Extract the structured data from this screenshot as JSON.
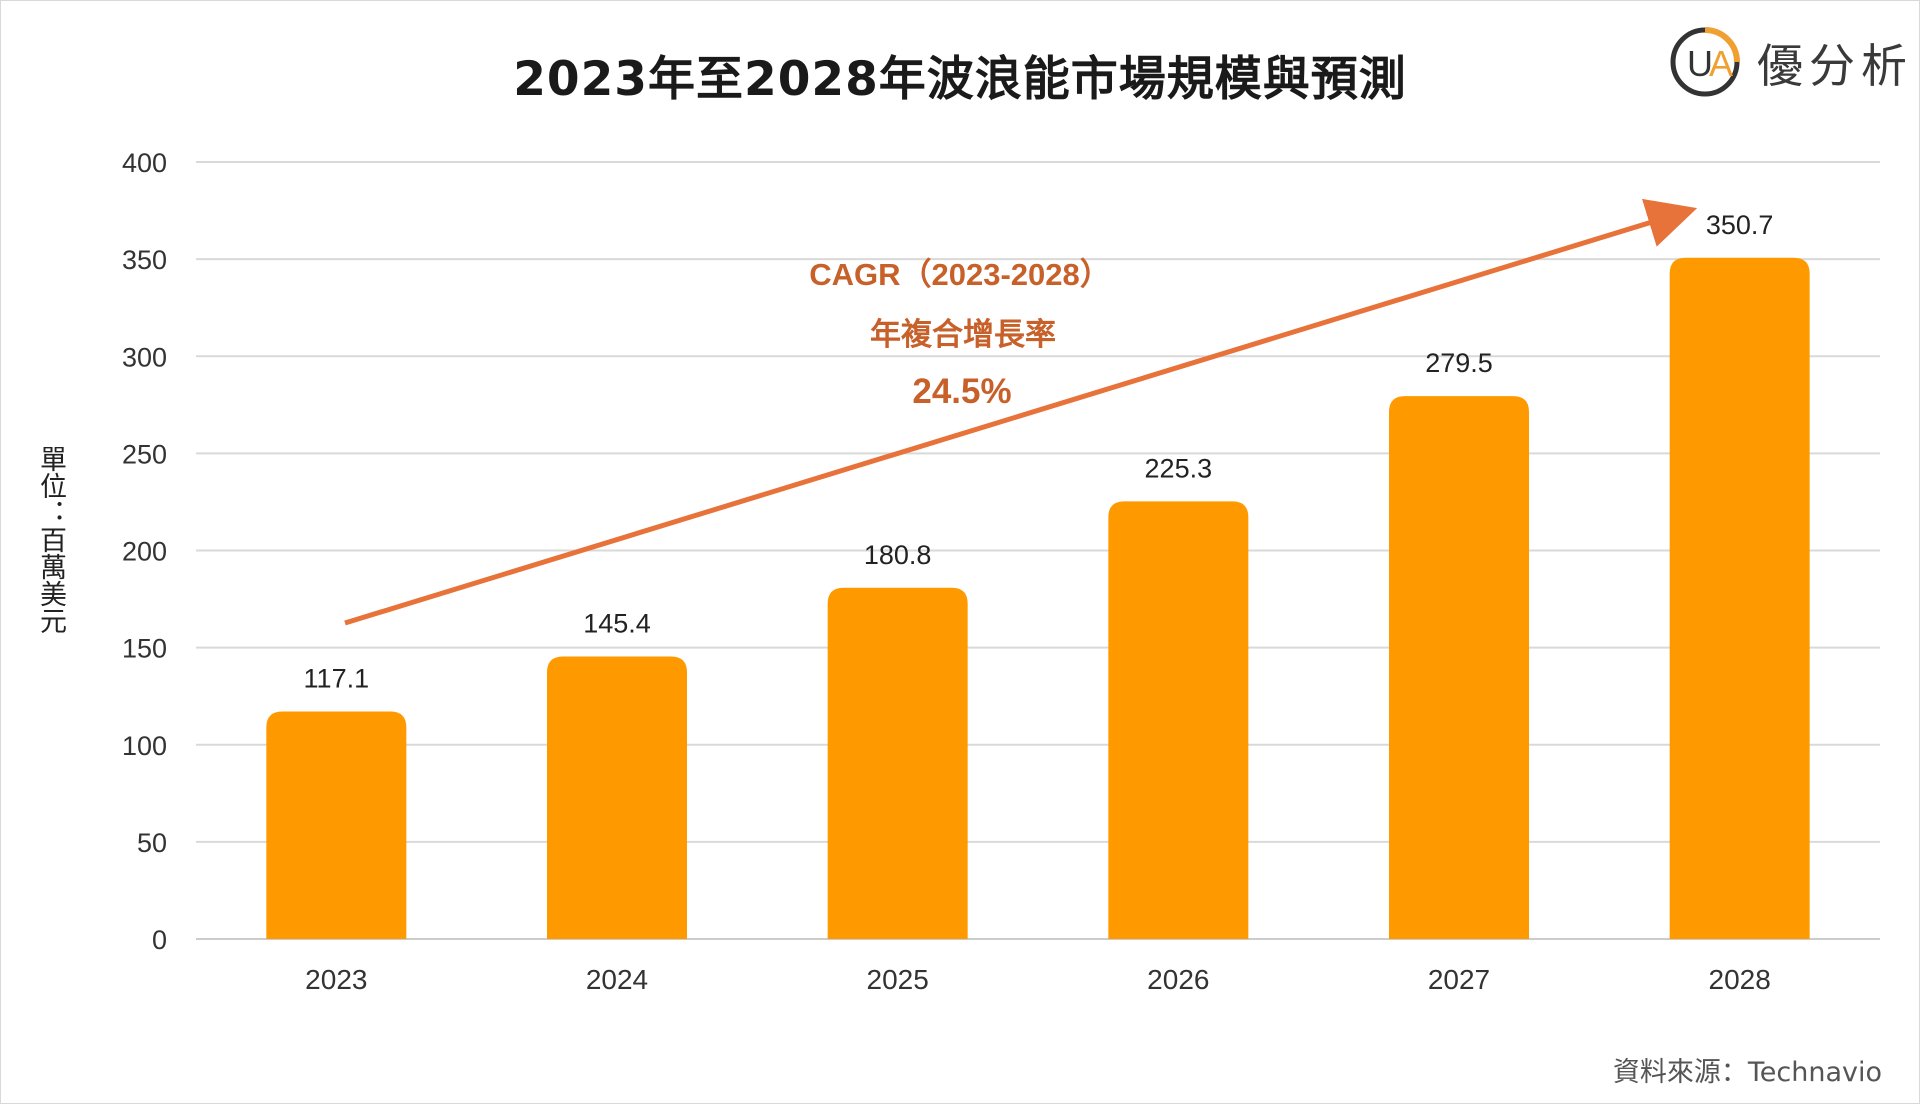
{
  "chart_data": {
    "type": "bar",
    "title": "2023年至2028年波浪能市場規模與預測",
    "ylabel": "單位：百萬美元",
    "categories": [
      "2023",
      "2024",
      "2025",
      "2026",
      "2027",
      "2028"
    ],
    "values": [
      117.1,
      145.4,
      180.8,
      225.3,
      279.5,
      350.7
    ],
    "value_labels": [
      "117.1",
      "145.4",
      "180.8",
      "225.3",
      "279.5",
      "350.7"
    ],
    "ylim": [
      0,
      400
    ],
    "yticks": [
      "0",
      "50",
      "100",
      "150",
      "200",
      "250",
      "300",
      "350",
      "400"
    ],
    "grid": true,
    "bar_color": "#ff9900",
    "annotation": {
      "line1": "CAGR（2023-2028）",
      "line2": "年複合增長率",
      "line3": "24.5%",
      "color": "#e8733a"
    }
  },
  "logo": {
    "text": "優分析",
    "mark_color": "#f0a030"
  },
  "source": "資料來源：Technavio"
}
